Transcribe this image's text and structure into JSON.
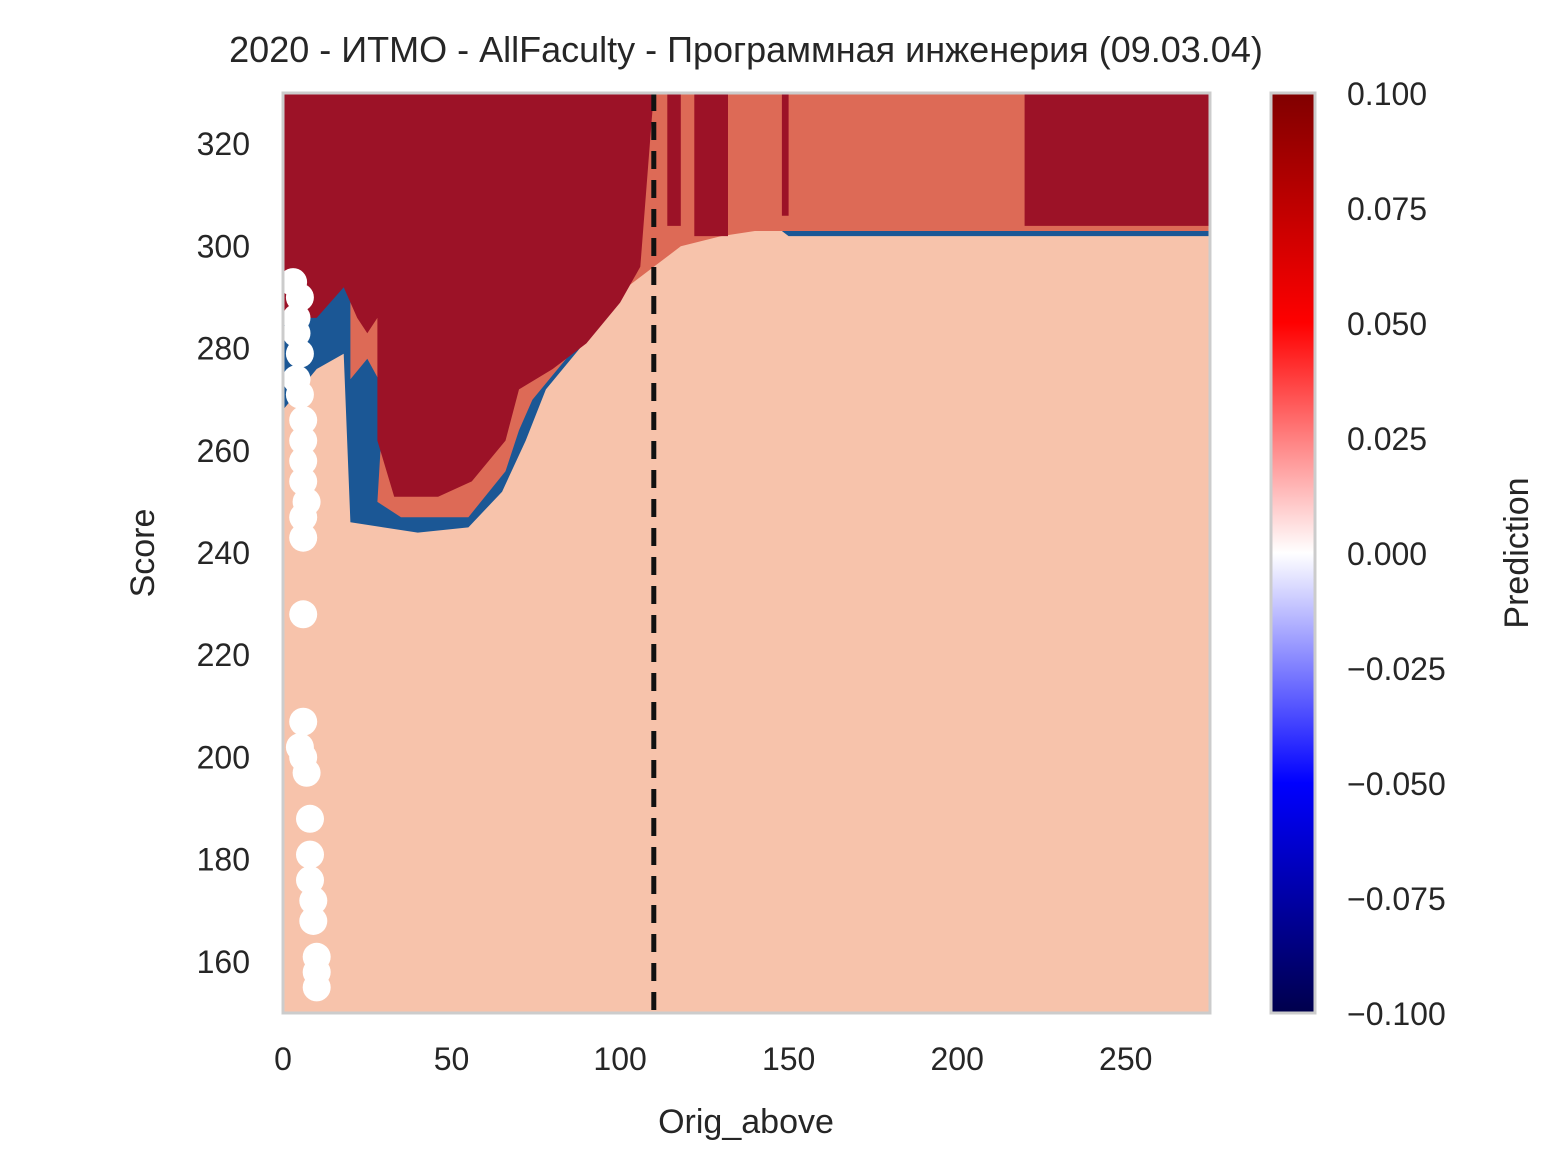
{
  "chart_data": {
    "type": "heatmap",
    "title": "2020 - ИТМО - AllFaculty - Программная инженерия (09.03.04)",
    "xlabel": "Orig_above",
    "ylabel": "Score",
    "xlim": [
      0,
      275
    ],
    "ylim": [
      150,
      330
    ],
    "x_ticks": [
      0,
      50,
      100,
      150,
      200,
      250
    ],
    "x_tick_labels": [
      "0",
      "50",
      "100",
      "150",
      "200",
      "250"
    ],
    "y_ticks": [
      160,
      180,
      200,
      220,
      240,
      260,
      280,
      300,
      320
    ],
    "y_tick_labels": [
      "160",
      "180",
      "200",
      "220",
      "240",
      "260",
      "280",
      "300",
      "320"
    ],
    "grid": false,
    "colorbar": {
      "label": "Prediction",
      "range": [
        -0.1,
        0.1
      ],
      "ticks": [
        0.1,
        0.075,
        0.05,
        0.025,
        0.0,
        -0.025,
        -0.05,
        -0.075,
        -0.1
      ],
      "tick_labels": [
        "0.100",
        "0.075",
        "0.050",
        "0.025",
        "0.000",
        "−0.025",
        "−0.050",
        "−0.075",
        "−0.100"
      ],
      "colors": [
        "#00004c",
        "#0000ff",
        "#ffffff",
        "#ff0000",
        "#800000"
      ]
    },
    "levels": [
      {
        "name": "strong-negative",
        "color": "#1b5795"
      },
      {
        "name": "medium-negative",
        "color": "#4b98c6"
      },
      {
        "name": "weak-negative",
        "color": "#b7d6e8"
      },
      {
        "name": "neutral",
        "color": "#f5f5f5"
      },
      {
        "name": "weak-positive",
        "color": "#f7c3ab"
      },
      {
        "name": "medium-positive",
        "color": "#dd6a56"
      },
      {
        "name": "strong-positive",
        "color": "#9c1227"
      }
    ],
    "threshold_line": {
      "x": 110,
      "style": "dashed",
      "color": "#111111"
    },
    "scatter": {
      "color": "#ffffff",
      "points": [
        {
          "x": 3,
          "y": 293
        },
        {
          "x": 5,
          "y": 290
        },
        {
          "x": 4,
          "y": 286
        },
        {
          "x": 4,
          "y": 283
        },
        {
          "x": 5,
          "y": 279
        },
        {
          "x": 4,
          "y": 274
        },
        {
          "x": 5,
          "y": 271
        },
        {
          "x": 6,
          "y": 266
        },
        {
          "x": 6,
          "y": 262
        },
        {
          "x": 6,
          "y": 258
        },
        {
          "x": 6,
          "y": 254
        },
        {
          "x": 7,
          "y": 250
        },
        {
          "x": 6,
          "y": 247
        },
        {
          "x": 6,
          "y": 243
        },
        {
          "x": 6,
          "y": 228
        },
        {
          "x": 6,
          "y": 207
        },
        {
          "x": 5,
          "y": 202
        },
        {
          "x": 6,
          "y": 200
        },
        {
          "x": 7,
          "y": 197
        },
        {
          "x": 8,
          "y": 188
        },
        {
          "x": 8,
          "y": 181
        },
        {
          "x": 8,
          "y": 176
        },
        {
          "x": 9,
          "y": 172
        },
        {
          "x": 9,
          "y": 168
        },
        {
          "x": 10,
          "y": 161
        },
        {
          "x": 10,
          "y": 158
        },
        {
          "x": 10,
          "y": 155
        }
      ]
    }
  }
}
